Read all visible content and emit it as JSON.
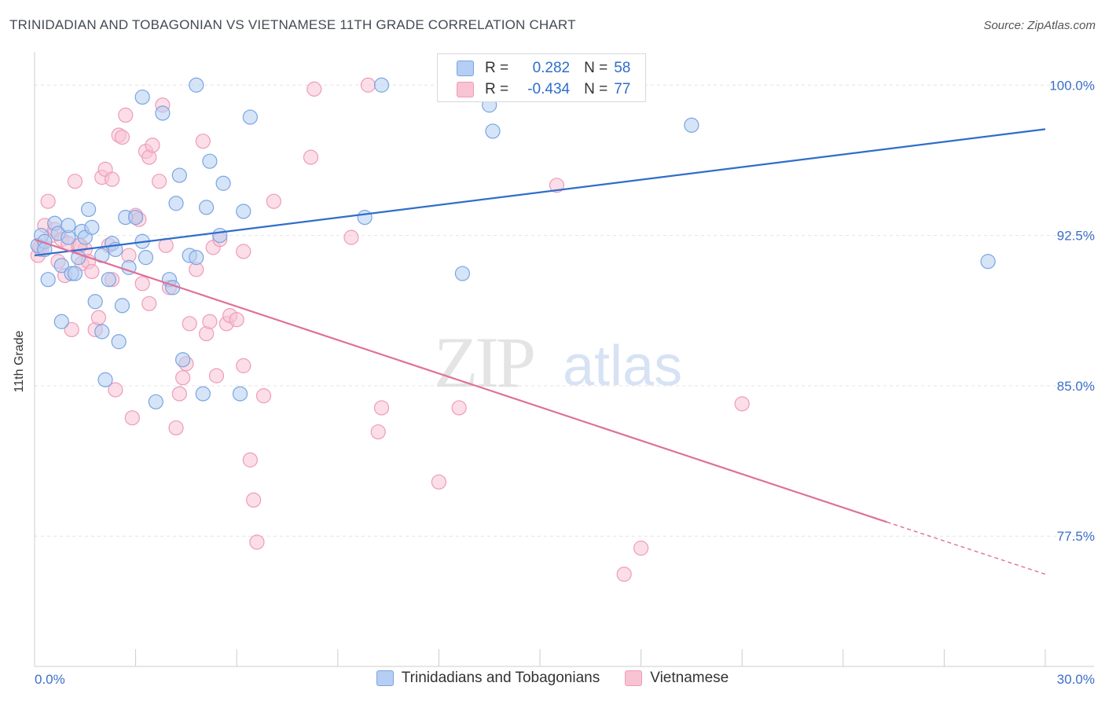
{
  "title": "TRINIDADIAN AND TOBAGONIAN VS VIETNAMESE 11TH GRADE CORRELATION CHART",
  "source": "Source: ZipAtlas.com",
  "watermark": {
    "zip": "ZIP",
    "atlas": "atlas"
  },
  "colors": {
    "blue": "#2f6dcc",
    "blue_fill": "#b5cef3",
    "blue_stroke": "#7aa4e2",
    "pink": "#e07098",
    "pink_fill": "#f8c3d3",
    "pink_stroke": "#ee9cb8",
    "axis_text": "#3a6fc8",
    "grid": "#e4e4e4"
  },
  "legend": {
    "rows": [
      {
        "r_label": "R =",
        "r_value": "0.282",
        "n_label": "N =",
        "n_value": "58"
      },
      {
        "r_label": "R =",
        "r_value": "-0.434",
        "n_label": "N =",
        "n_value": "77"
      }
    ]
  },
  "bottom_legend": [
    "Trinidadians and Tobagonians",
    "Vietnamese"
  ],
  "chart_data": {
    "type": "scatter",
    "xlabel": "",
    "ylabel": "11th Grade",
    "xlim": [
      0.0,
      30.0
    ],
    "ylim": [
      71.0,
      101.5
    ],
    "x_tick_labels": [
      "0.0%",
      "30.0%"
    ],
    "y_ticks": [
      100.0,
      92.5,
      85.0,
      77.5
    ],
    "y_tick_labels": [
      "100.0%",
      "92.5%",
      "85.0%",
      "77.5%"
    ],
    "series": [
      {
        "name": "Trinidadians and Tobagonians",
        "R": 0.282,
        "N": 58,
        "trend": {
          "x": [
            0.0,
            30.0
          ],
          "y": [
            91.5,
            97.8
          ]
        },
        "points": [
          [
            0.1,
            92.0
          ],
          [
            0.2,
            92.5
          ],
          [
            0.3,
            92.2
          ],
          [
            0.4,
            90.3
          ],
          [
            0.6,
            93.1
          ],
          [
            0.7,
            92.6
          ],
          [
            0.8,
            91.0
          ],
          [
            0.8,
            88.2
          ],
          [
            1.0,
            92.4
          ],
          [
            1.0,
            93.0
          ],
          [
            1.1,
            90.6
          ],
          [
            1.2,
            90.6
          ],
          [
            1.3,
            91.4
          ],
          [
            1.4,
            92.7
          ],
          [
            1.5,
            92.4
          ],
          [
            1.6,
            93.8
          ],
          [
            1.7,
            92.9
          ],
          [
            1.8,
            89.2
          ],
          [
            2.0,
            91.5
          ],
          [
            2.0,
            87.7
          ],
          [
            2.1,
            85.3
          ],
          [
            2.2,
            90.3
          ],
          [
            2.3,
            92.1
          ],
          [
            2.4,
            91.8
          ],
          [
            2.5,
            87.2
          ],
          [
            2.6,
            89.0
          ],
          [
            2.7,
            93.4
          ],
          [
            2.8,
            90.9
          ],
          [
            3.0,
            93.4
          ],
          [
            3.2,
            92.2
          ],
          [
            3.3,
            91.4
          ],
          [
            3.2,
            99.4
          ],
          [
            3.6,
            84.2
          ],
          [
            3.8,
            98.6
          ],
          [
            4.0,
            90.3
          ],
          [
            4.1,
            89.9
          ],
          [
            4.2,
            94.1
          ],
          [
            4.3,
            95.5
          ],
          [
            4.4,
            86.3
          ],
          [
            4.6,
            91.5
          ],
          [
            4.8,
            91.4
          ],
          [
            4.8,
            100.0
          ],
          [
            5.0,
            84.6
          ],
          [
            5.1,
            93.9
          ],
          [
            5.2,
            96.2
          ],
          [
            5.5,
            92.5
          ],
          [
            5.6,
            95.1
          ],
          [
            6.1,
            84.6
          ],
          [
            6.2,
            93.7
          ],
          [
            6.4,
            98.4
          ],
          [
            9.8,
            93.4
          ],
          [
            10.3,
            100.0
          ],
          [
            12.7,
            90.6
          ],
          [
            13.5,
            99.0
          ],
          [
            13.6,
            97.7
          ],
          [
            19.5,
            98.0
          ],
          [
            28.3,
            91.2
          ],
          [
            0.3,
            91.8
          ]
        ]
      },
      {
        "name": "Vietnamese",
        "R": -0.434,
        "N": 77,
        "trend": {
          "x": [
            0.0,
            25.3
          ],
          "y": [
            92.3,
            78.2
          ]
        },
        "trend_dashed": {
          "x": [
            25.3,
            30.0
          ],
          "y": [
            78.2,
            75.6
          ]
        },
        "points": [
          [
            0.1,
            91.5
          ],
          [
            0.2,
            91.8
          ],
          [
            0.3,
            93.0
          ],
          [
            0.4,
            94.2
          ],
          [
            0.5,
            92.5
          ],
          [
            0.6,
            92.8
          ],
          [
            0.7,
            91.2
          ],
          [
            0.8,
            92.3
          ],
          [
            0.9,
            90.5
          ],
          [
            1.0,
            92.1
          ],
          [
            1.1,
            87.8
          ],
          [
            1.2,
            95.2
          ],
          [
            1.3,
            92.0
          ],
          [
            1.4,
            91.1
          ],
          [
            1.5,
            91.8
          ],
          [
            1.6,
            91.2
          ],
          [
            1.7,
            90.7
          ],
          [
            1.8,
            87.8
          ],
          [
            1.9,
            88.4
          ],
          [
            2.0,
            95.4
          ],
          [
            2.1,
            95.8
          ],
          [
            2.2,
            92.0
          ],
          [
            2.3,
            90.3
          ],
          [
            2.3,
            95.3
          ],
          [
            2.4,
            84.8
          ],
          [
            2.5,
            97.5
          ],
          [
            2.6,
            97.4
          ],
          [
            2.7,
            98.5
          ],
          [
            2.8,
            91.5
          ],
          [
            2.9,
            83.4
          ],
          [
            3.0,
            93.5
          ],
          [
            3.1,
            93.3
          ],
          [
            3.2,
            90.1
          ],
          [
            3.3,
            96.7
          ],
          [
            3.4,
            96.4
          ],
          [
            3.4,
            89.1
          ],
          [
            3.5,
            97.0
          ],
          [
            3.7,
            95.2
          ],
          [
            3.8,
            99.0
          ],
          [
            3.9,
            92.0
          ],
          [
            4.0,
            89.9
          ],
          [
            4.2,
            82.9
          ],
          [
            4.3,
            84.6
          ],
          [
            4.4,
            85.4
          ],
          [
            4.5,
            86.1
          ],
          [
            4.6,
            88.1
          ],
          [
            4.8,
            90.8
          ],
          [
            5.0,
            97.2
          ],
          [
            5.1,
            87.6
          ],
          [
            5.2,
            88.2
          ],
          [
            5.3,
            91.9
          ],
          [
            5.4,
            85.5
          ],
          [
            5.5,
            92.3
          ],
          [
            5.7,
            88.1
          ],
          [
            5.8,
            88.5
          ],
          [
            6.0,
            88.3
          ],
          [
            6.2,
            91.7
          ],
          [
            6.4,
            81.3
          ],
          [
            6.5,
            79.3
          ],
          [
            6.6,
            77.2
          ],
          [
            6.8,
            84.5
          ],
          [
            6.2,
            86.0
          ],
          [
            7.1,
            94.2
          ],
          [
            8.2,
            96.4
          ],
          [
            8.3,
            99.8
          ],
          [
            9.4,
            92.4
          ],
          [
            9.9,
            100.0
          ],
          [
            10.2,
            82.7
          ],
          [
            10.3,
            83.9
          ],
          [
            12.0,
            80.2
          ],
          [
            12.6,
            83.9
          ],
          [
            15.5,
            95.0
          ],
          [
            17.5,
            75.6
          ],
          [
            18.0,
            76.9
          ],
          [
            21.0,
            84.1
          ],
          [
            0.15,
            91.9
          ],
          [
            1.35,
            92.0
          ]
        ]
      }
    ]
  }
}
